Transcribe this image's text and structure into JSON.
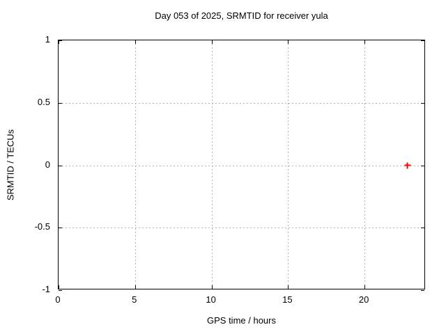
{
  "figure": {
    "background_color": "#ffffff",
    "border_color": "#000000",
    "grid_color": "#b0b0b0",
    "text_color": "#000000"
  },
  "chart_data": {
    "type": "scatter",
    "title": "Day 053 of 2025, SRMTID for receiver yula",
    "xlabel": "GPS time / hours",
    "ylabel": "SRMTID / TECUs",
    "xlim": [
      0,
      24
    ],
    "ylim": [
      -1,
      1
    ],
    "x_ticks": [
      0,
      5,
      10,
      15,
      20
    ],
    "y_ticks": [
      -1,
      -0.5,
      0,
      0.5,
      1
    ],
    "grid": true,
    "legend": "none",
    "marker_color": "#ff0000",
    "series": [
      {
        "name": "SRMTID",
        "marker": "plus",
        "color": "#ff0000",
        "points": [
          {
            "x": 22.8,
            "y": 0.0
          }
        ]
      }
    ]
  }
}
